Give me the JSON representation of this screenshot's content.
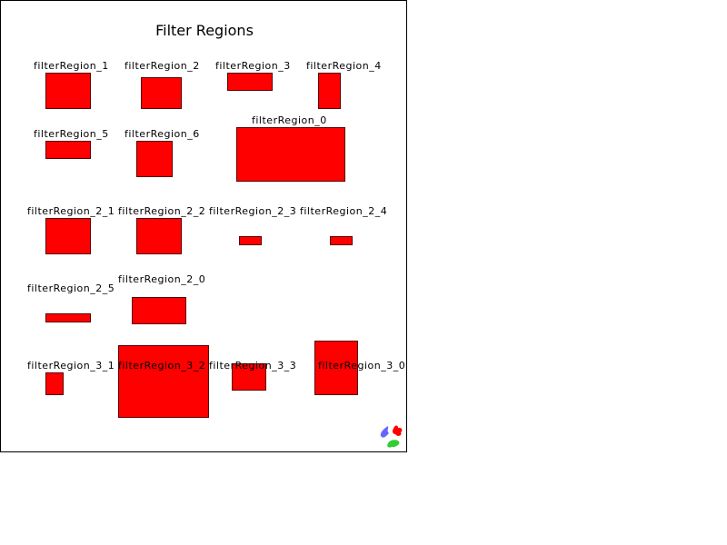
{
  "page": {
    "title": "Filter Regions",
    "region_color": "#ff0000",
    "border_color": "#000000"
  },
  "labels": {
    "r1": "filterRegion_1",
    "r2": "filterRegion_2",
    "r3": "filterRegion_3",
    "r4": "filterRegion_4",
    "r5": "filterRegion_5",
    "r6": "filterRegion_6",
    "r0": "filterRegion_0",
    "r2_1": "filterRegion_2_1",
    "r2_2": "filterRegion_2_2",
    "r2_3": "filterRegion_2_3",
    "r2_4": "filterRegion_2_4",
    "r2_5": "filterRegion_2_5",
    "r2_0": "filterRegion_2_0",
    "r3_1": "filterRegion_3_1",
    "r3_2": "filterRegion_3_2",
    "r3_3": "filterRegion_3_3",
    "r3_0": "filterRegion_3_0"
  },
  "logo": {
    "icon": "svg-logo-icon",
    "colors": [
      "#6666ff",
      "#ff0000",
      "#33cc33"
    ]
  }
}
